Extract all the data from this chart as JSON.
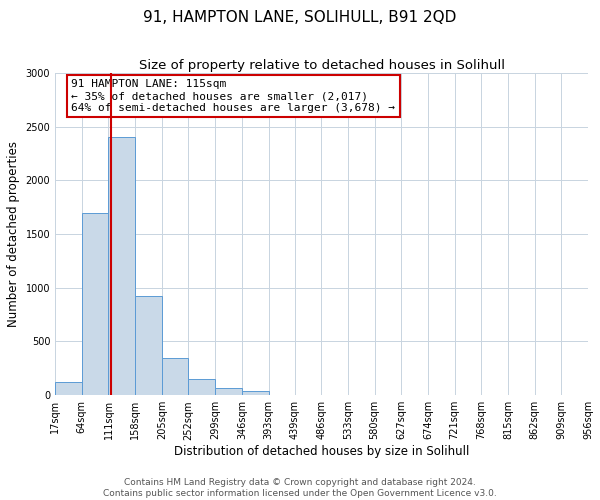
{
  "title": "91, HAMPTON LANE, SOLIHULL, B91 2QD",
  "subtitle": "Size of property relative to detached houses in Solihull",
  "xlabel": "Distribution of detached houses by size in Solihull",
  "ylabel": "Number of detached properties",
  "bin_edges": [
    17,
    64,
    111,
    158,
    205,
    252,
    299,
    346,
    393,
    439,
    486,
    533,
    580,
    627,
    674,
    721,
    768,
    815,
    862,
    909,
    956
  ],
  "bar_heights": [
    120,
    1700,
    2400,
    920,
    345,
    150,
    70,
    40,
    0,
    0,
    0,
    0,
    0,
    0,
    0,
    0,
    0,
    0,
    0,
    0
  ],
  "bar_color": "#c9d9e8",
  "bar_edge_color": "#5b9bd5",
  "property_line_x": 115,
  "property_line_color": "#cc0000",
  "annotation_text": "91 HAMPTON LANE: 115sqm\n← 35% of detached houses are smaller (2,017)\n64% of semi-detached houses are larger (3,678) →",
  "annotation_box_color": "#ffffff",
  "annotation_box_edge": "#cc0000",
  "ylim": [
    0,
    3000
  ],
  "yticks": [
    0,
    500,
    1000,
    1500,
    2000,
    2500,
    3000
  ],
  "tick_labels": [
    "17sqm",
    "64sqm",
    "111sqm",
    "158sqm",
    "205sqm",
    "252sqm",
    "299sqm",
    "346sqm",
    "393sqm",
    "439sqm",
    "486sqm",
    "533sqm",
    "580sqm",
    "627sqm",
    "674sqm",
    "721sqm",
    "768sqm",
    "815sqm",
    "862sqm",
    "909sqm",
    "956sqm"
  ],
  "footer_line1": "Contains HM Land Registry data © Crown copyright and database right 2024.",
  "footer_line2": "Contains public sector information licensed under the Open Government Licence v3.0.",
  "background_color": "#ffffff",
  "grid_color": "#c8d4e0",
  "title_fontsize": 11,
  "subtitle_fontsize": 9.5,
  "axis_label_fontsize": 8.5,
  "tick_fontsize": 7,
  "footer_fontsize": 6.5,
  "annotation_fontsize": 8
}
